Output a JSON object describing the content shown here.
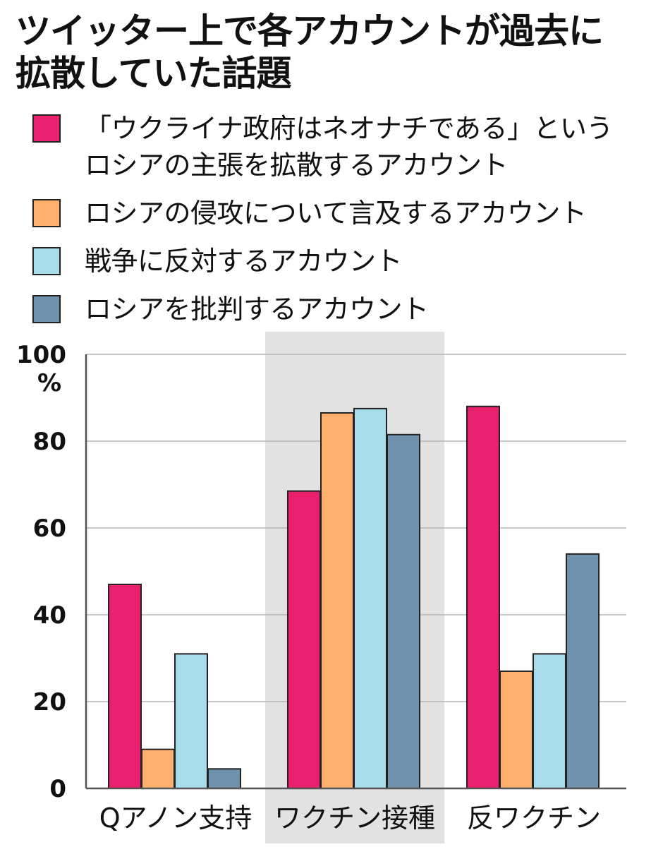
{
  "title": {
    "line1": "ツイッター上で各アカウントが過去に",
    "line2": "拡散していた話題"
  },
  "legend": [
    {
      "lines": [
        "「ウクライナ政府はネオナチである」という",
        "ロシアの主張を拡散するアカウント"
      ],
      "color": "#e8206e"
    },
    {
      "lines": [
        "ロシアの侵攻について言及するアカウント"
      ],
      "color": "#fdb06e"
    },
    {
      "lines": [
        "戦争に反対するアカウント"
      ],
      "color": "#a8dcea"
    },
    {
      "lines": [
        "ロシアを批判するアカウント"
      ],
      "color": "#7192ac"
    }
  ],
  "chart_data": {
    "type": "bar",
    "categories": [
      "Qアノン支持",
      "ワクチン接種",
      "反ワクチン"
    ],
    "series": [
      {
        "name": "「ウクライナ政府はネオナチである」というロシアの主張を拡散するアカウント",
        "color": "#e8206e",
        "values": [
          47,
          68.5,
          88
        ]
      },
      {
        "name": "ロシアの侵攻について言及するアカウント",
        "color": "#fdb06e",
        "values": [
          9,
          86.5,
          27
        ]
      },
      {
        "name": "戦争に反対するアカウント",
        "color": "#a8dcea",
        "values": [
          31,
          87.5,
          31
        ]
      },
      {
        "name": "ロシアを批判するアカウント",
        "color": "#7192ac",
        "values": [
          4.5,
          81.5,
          54
        ]
      }
    ],
    "yticks": [
      "0",
      "20",
      "40",
      "60",
      "80",
      "100"
    ],
    "yunit": "%",
    "ylim": [
      0,
      100
    ],
    "highlight_category": "ワクチン接種",
    "highlight_color": "#e2e2e2",
    "grid": true
  }
}
